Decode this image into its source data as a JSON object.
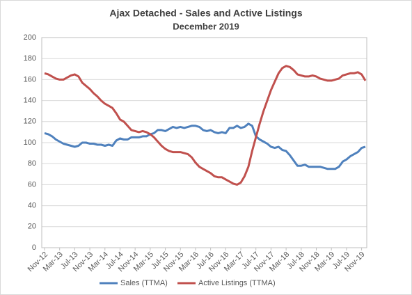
{
  "chart_data": {
    "type": "line",
    "title": "Ajax Detached - Sales and Active Listings",
    "subtitle": "December 2019",
    "categories": [
      "Nov-12",
      null,
      null,
      null,
      "Mar-13",
      null,
      null,
      null,
      "Jul-13",
      null,
      null,
      null,
      "Nov-13",
      null,
      null,
      null,
      "Mar-14",
      null,
      null,
      null,
      "Jul-14",
      null,
      null,
      null,
      "Nov-14",
      null,
      null,
      null,
      "Mar-15",
      null,
      null,
      null,
      "Jul-15",
      null,
      null,
      null,
      "Nov-15",
      null,
      null,
      null,
      "Mar-16",
      null,
      null,
      null,
      "Jul-16",
      null,
      null,
      null,
      "Nov-16",
      null,
      null,
      null,
      "Mar-17",
      null,
      null,
      null,
      "Jul-17",
      null,
      null,
      null,
      "Nov-17",
      null,
      null,
      null,
      "Mar-18",
      null,
      null,
      null,
      "Jul-18",
      null,
      null,
      null,
      "Nov-18",
      null,
      null,
      null,
      "Mar-19",
      null,
      null,
      null,
      "Jul-19",
      null,
      null,
      null,
      "Nov-19",
      null
    ],
    "series": [
      {
        "name": "Sales (TTMA)",
        "color": "#4f81bd",
        "values": [
          109,
          108,
          106,
          103,
          101,
          99,
          98,
          97,
          96,
          97,
          100,
          100,
          99,
          99,
          98,
          98,
          97,
          98,
          97,
          102,
          104,
          103,
          103,
          105,
          105,
          105,
          106,
          106,
          108,
          109,
          112,
          112,
          111,
          113,
          115,
          114,
          115,
          114,
          115,
          116,
          116,
          115,
          112,
          111,
          112,
          110,
          109,
          110,
          109,
          114,
          114,
          116,
          114,
          115,
          118,
          116,
          106,
          103,
          101,
          99,
          96,
          95,
          96,
          93,
          92,
          88,
          83,
          78,
          78,
          79,
          77,
          77,
          77,
          77,
          76,
          75,
          75,
          75,
          77,
          82,
          84,
          87,
          89,
          91,
          95,
          96
        ]
      },
      {
        "name": "Active Listings (TTMA)",
        "color": "#c0504d",
        "values": [
          166,
          165,
          163,
          161,
          160,
          160,
          162,
          164,
          165,
          163,
          157,
          154,
          151,
          147,
          144,
          140,
          137,
          135,
          133,
          128,
          122,
          120,
          116,
          112,
          111,
          110,
          111,
          110,
          108,
          105,
          101,
          97,
          94,
          92,
          91,
          91,
          91,
          90,
          89,
          86,
          81,
          77,
          75,
          73,
          71,
          68,
          67,
          67,
          65,
          63,
          61,
          60,
          62,
          68,
          77,
          92,
          105,
          118,
          130,
          140,
          150,
          158,
          166,
          171,
          173,
          172,
          169,
          165,
          164,
          163,
          163,
          164,
          163,
          161,
          160,
          159,
          159,
          160,
          161,
          164,
          165,
          166,
          166,
          167,
          165,
          159
        ]
      }
    ],
    "ylim": [
      0,
      200
    ],
    "yticks": [
      0,
      20,
      40,
      60,
      80,
      100,
      120,
      140,
      160,
      180,
      200
    ],
    "grid": true
  }
}
